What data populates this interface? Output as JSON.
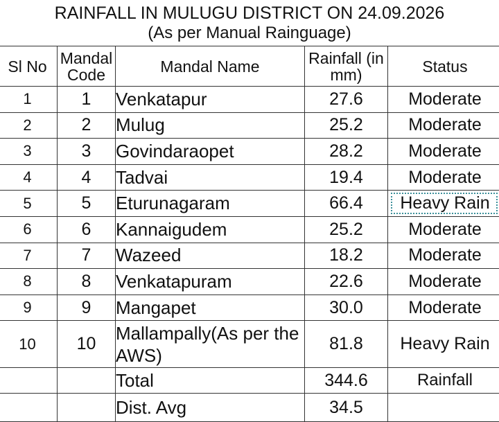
{
  "title": "RAINFALL IN MULUGU DISTRICT ON 24.09.2026",
  "subtitle": "(As per Manual Rainguage)",
  "headers": {
    "sl_no": "Sl No",
    "mandal_code_1": "Mandal",
    "mandal_code_2": "Code",
    "mandal_name": "Mandal Name",
    "rainfall_1": "Rainfall (in",
    "rainfall_2": "mm)",
    "status": "Status"
  },
  "rows": [
    {
      "sl": "1",
      "code": "1",
      "name": "Venkatapur",
      "rainfall": "27.6",
      "status": "Moderate"
    },
    {
      "sl": "2",
      "code": "2",
      "name": "Mulug",
      "rainfall": "25.2",
      "status": "Moderate"
    },
    {
      "sl": "3",
      "code": "3",
      "name": "Govindaraopet",
      "rainfall": "28.2",
      "status": "Moderate"
    },
    {
      "sl": "4",
      "code": "4",
      "name": "Tadvai",
      "rainfall": "19.4",
      "status": "Moderate"
    },
    {
      "sl": "5",
      "code": "5",
      "name": "Eturunagaram",
      "rainfall": "66.4",
      "status": "Heavy Rain"
    },
    {
      "sl": "6",
      "code": "6",
      "name": "Kannaigudem",
      "rainfall": "25.2",
      "status": "Moderate"
    },
    {
      "sl": "7",
      "code": "7",
      "name": "Wazeed",
      "rainfall": "18.2",
      "status": "Moderate"
    },
    {
      "sl": "8",
      "code": "8",
      "name": "Venkatapuram",
      "rainfall": "22.6",
      "status": "Moderate"
    },
    {
      "sl": "9",
      "code": "9",
      "name": "Mangapet",
      "rainfall": "30.0",
      "status": "Moderate"
    },
    {
      "sl": "10",
      "code": "10",
      "name": "Mallampally(As per the AWS)",
      "rainfall": "81.8",
      "status": "Heavy Rain"
    }
  ],
  "total": {
    "label": "Total",
    "value": "344.6",
    "note": "Rainfall"
  },
  "average": {
    "label": "Dist. Avg",
    "value": "34.5"
  }
}
